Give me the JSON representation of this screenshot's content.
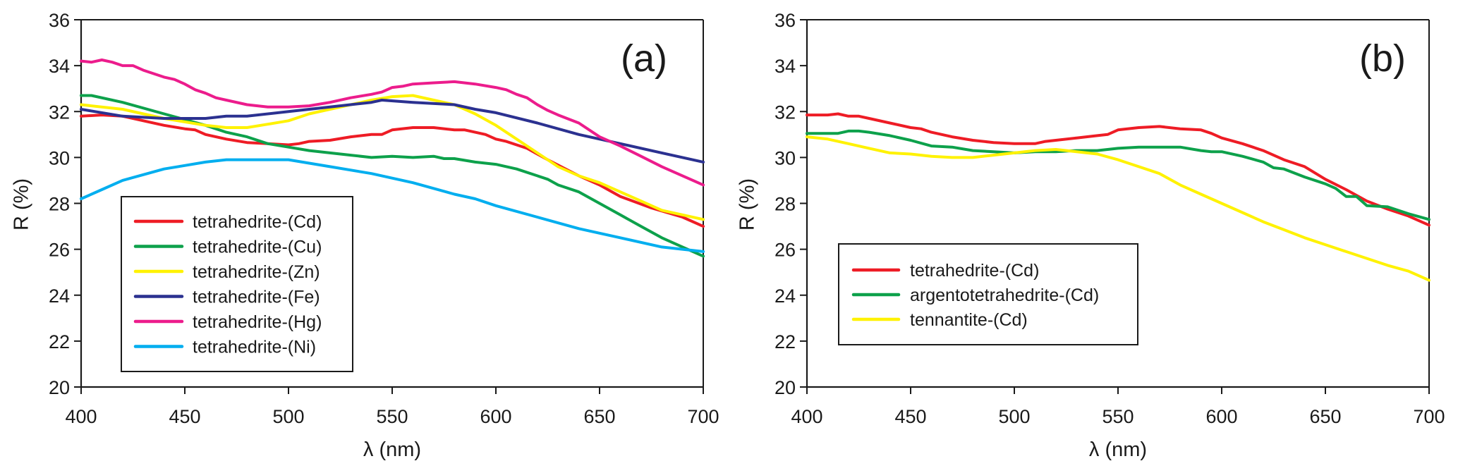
{
  "chart_data": [
    {
      "type": "line",
      "panel_tag": "(a)",
      "title": "",
      "xlabel": "λ (nm)",
      "ylabel": "R (%)",
      "xlim": [
        400,
        700
      ],
      "ylim": [
        20,
        36
      ],
      "xticks": [
        400,
        450,
        500,
        550,
        600,
        650,
        700
      ],
      "yticks": [
        20,
        22,
        24,
        26,
        28,
        30,
        32,
        34,
        36
      ],
      "grid": false,
      "legend_position": "bottom-left",
      "series": [
        {
          "name": "tetrahedrite-(Cd)",
          "color": "#ee1c25",
          "x": [
            400,
            410,
            420,
            430,
            440,
            450,
            455,
            460,
            470,
            480,
            490,
            500,
            505,
            510,
            520,
            530,
            540,
            545,
            550,
            560,
            570,
            580,
            585,
            595,
            600,
            605,
            615,
            625,
            640,
            650,
            660,
            675,
            690,
            700
          ],
          "y": [
            31.8,
            31.85,
            31.8,
            31.6,
            31.4,
            31.25,
            31.2,
            31.0,
            30.8,
            30.65,
            30.6,
            30.55,
            30.6,
            30.7,
            30.75,
            30.9,
            31.0,
            31.0,
            31.2,
            31.3,
            31.3,
            31.2,
            31.2,
            31.0,
            30.8,
            30.7,
            30.4,
            29.9,
            29.2,
            28.8,
            28.3,
            27.8,
            27.4,
            27.0
          ]
        },
        {
          "name": "tetrahedrite-(Cu)",
          "color": "#0da14b",
          "x": [
            400,
            405,
            420,
            440,
            460,
            470,
            480,
            490,
            500,
            510,
            520,
            530,
            540,
            550,
            560,
            570,
            575,
            580,
            590,
            600,
            610,
            620,
            625,
            630,
            640,
            650,
            660,
            670,
            680,
            690,
            700
          ],
          "y": [
            32.7,
            32.7,
            32.4,
            31.9,
            31.4,
            31.1,
            30.9,
            30.6,
            30.45,
            30.3,
            30.2,
            30.1,
            30.0,
            30.05,
            30.0,
            30.05,
            29.95,
            29.95,
            29.8,
            29.7,
            29.5,
            29.2,
            29.05,
            28.8,
            28.5,
            28.0,
            27.5,
            27.0,
            26.5,
            26.1,
            25.7
          ]
        },
        {
          "name": "tetrahedrite-(Zn)",
          "color": "#fff200",
          "x": [
            400,
            420,
            440,
            460,
            470,
            480,
            490,
            500,
            510,
            520,
            530,
            540,
            550,
            560,
            570,
            580,
            590,
            600,
            610,
            620,
            630,
            640,
            650,
            660,
            670,
            680,
            690,
            700
          ],
          "y": [
            32.3,
            32.1,
            31.7,
            31.4,
            31.3,
            31.3,
            31.45,
            31.6,
            31.9,
            32.1,
            32.3,
            32.5,
            32.65,
            32.7,
            32.5,
            32.3,
            31.9,
            31.4,
            30.8,
            30.2,
            29.6,
            29.2,
            28.9,
            28.5,
            28.1,
            27.7,
            27.5,
            27.3
          ]
        },
        {
          "name": "tetrahedrite-(Fe)",
          "color": "#2b3190",
          "x": [
            400,
            420,
            440,
            460,
            470,
            480,
            500,
            520,
            540,
            545,
            560,
            580,
            590,
            600,
            620,
            640,
            660,
            680,
            700
          ],
          "y": [
            32.1,
            31.8,
            31.7,
            31.7,
            31.8,
            31.8,
            32.0,
            32.2,
            32.4,
            32.5,
            32.4,
            32.3,
            32.1,
            31.95,
            31.5,
            31.0,
            30.6,
            30.2,
            29.8
          ]
        },
        {
          "name": "tetrahedrite-(Hg)",
          "color": "#ec1c8c",
          "x": [
            400,
            405,
            410,
            415,
            420,
            425,
            430,
            440,
            445,
            450,
            455,
            460,
            465,
            470,
            480,
            490,
            500,
            510,
            520,
            530,
            540,
            545,
            550,
            555,
            560,
            570,
            580,
            590,
            600,
            605,
            610,
            615,
            620,
            625,
            630,
            640,
            650,
            660,
            670,
            680,
            690,
            700
          ],
          "y": [
            34.2,
            34.15,
            34.25,
            34.15,
            34.0,
            34.0,
            33.8,
            33.5,
            33.4,
            33.2,
            32.95,
            32.8,
            32.6,
            32.5,
            32.3,
            32.2,
            32.2,
            32.25,
            32.4,
            32.6,
            32.75,
            32.85,
            33.05,
            33.1,
            33.2,
            33.25,
            33.3,
            33.2,
            33.05,
            32.95,
            32.75,
            32.6,
            32.3,
            32.05,
            31.85,
            31.5,
            30.9,
            30.5,
            30.05,
            29.6,
            29.2,
            28.8
          ]
        },
        {
          "name": "tetrahedrite-(Ni)",
          "color": "#00aeef",
          "x": [
            400,
            410,
            420,
            430,
            440,
            450,
            460,
            470,
            500,
            510,
            520,
            540,
            550,
            560,
            580,
            590,
            600,
            620,
            640,
            660,
            680,
            700
          ],
          "y": [
            28.2,
            28.6,
            29.0,
            29.25,
            29.5,
            29.65,
            29.8,
            29.9,
            29.9,
            29.75,
            29.6,
            29.3,
            29.1,
            28.9,
            28.4,
            28.2,
            27.9,
            27.4,
            26.9,
            26.5,
            26.1,
            25.9
          ]
        }
      ]
    },
    {
      "type": "line",
      "panel_tag": "(b)",
      "title": "",
      "xlabel": "λ (nm)",
      "ylabel": "R (%)",
      "xlim": [
        400,
        700
      ],
      "ylim": [
        20,
        36
      ],
      "xticks": [
        400,
        450,
        500,
        550,
        600,
        650,
        700
      ],
      "yticks": [
        20,
        22,
        24,
        26,
        28,
        30,
        32,
        34,
        36
      ],
      "grid": false,
      "legend_position": "bottom-left",
      "series": [
        {
          "name": "tetrahedrite-(Cd)",
          "color": "#ee1c25",
          "x": [
            400,
            410,
            415,
            420,
            425,
            430,
            440,
            450,
            455,
            460,
            470,
            480,
            490,
            500,
            510,
            515,
            520,
            530,
            540,
            545,
            550,
            560,
            570,
            580,
            590,
            595,
            600,
            610,
            620,
            630,
            640,
            650,
            660,
            670,
            680,
            690,
            700
          ],
          "y": [
            31.85,
            31.85,
            31.9,
            31.8,
            31.8,
            31.7,
            31.5,
            31.3,
            31.25,
            31.1,
            30.9,
            30.75,
            30.65,
            30.6,
            30.6,
            30.7,
            30.75,
            30.85,
            30.95,
            31.0,
            31.2,
            31.3,
            31.35,
            31.25,
            31.2,
            31.05,
            30.85,
            30.6,
            30.3,
            29.9,
            29.6,
            29.05,
            28.6,
            28.1,
            27.75,
            27.45,
            27.05
          ]
        },
        {
          "name": "argentotetrahedrite-(Cd)",
          "color": "#0da14b",
          "x": [
            400,
            410,
            415,
            420,
            425,
            430,
            440,
            450,
            460,
            470,
            480,
            490,
            500,
            510,
            520,
            530,
            540,
            545,
            550,
            560,
            570,
            580,
            590,
            595,
            600,
            610,
            620,
            625,
            630,
            640,
            650,
            655,
            660,
            665,
            670,
            680,
            690,
            700
          ],
          "y": [
            31.05,
            31.05,
            31.05,
            31.15,
            31.15,
            31.1,
            30.95,
            30.75,
            30.5,
            30.45,
            30.3,
            30.25,
            30.2,
            30.25,
            30.25,
            30.3,
            30.3,
            30.35,
            30.4,
            30.45,
            30.45,
            30.45,
            30.3,
            30.25,
            30.25,
            30.05,
            29.8,
            29.55,
            29.5,
            29.15,
            28.85,
            28.65,
            28.3,
            28.3,
            27.9,
            27.85,
            27.55,
            27.3
          ]
        },
        {
          "name": "tennantite-(Cd)",
          "color": "#fff200",
          "x": [
            400,
            410,
            420,
            430,
            440,
            450,
            460,
            470,
            480,
            490,
            500,
            510,
            520,
            530,
            540,
            550,
            560,
            570,
            580,
            590,
            600,
            610,
            620,
            630,
            640,
            650,
            660,
            670,
            680,
            690,
            700
          ],
          "y": [
            30.9,
            30.8,
            30.6,
            30.4,
            30.2,
            30.15,
            30.05,
            30.0,
            30.0,
            30.1,
            30.2,
            30.3,
            30.35,
            30.25,
            30.15,
            29.9,
            29.6,
            29.3,
            28.8,
            28.4,
            28.0,
            27.6,
            27.2,
            26.85,
            26.5,
            26.2,
            25.9,
            25.6,
            25.3,
            25.05,
            24.65
          ]
        }
      ]
    }
  ]
}
